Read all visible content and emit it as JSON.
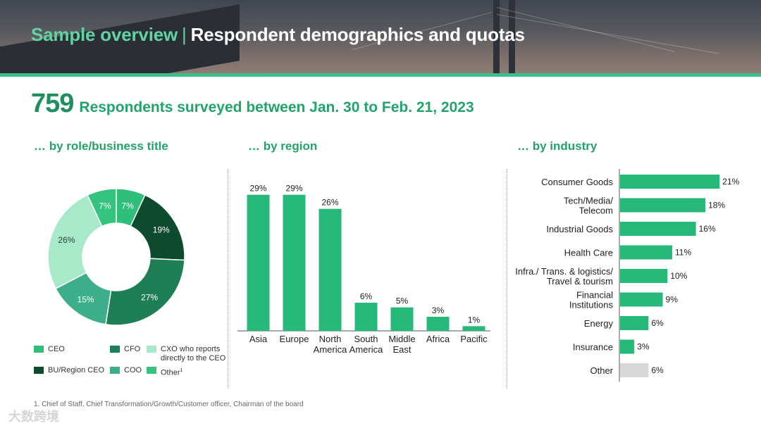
{
  "header": {
    "title_part1": "Sample overview",
    "separator": "|",
    "title_part2": "Respondent demographics and quotas"
  },
  "kpi": {
    "value": "759",
    "text": "Respondents surveyed between Jan. 30 to Feb. 21, 2023"
  },
  "sections": {
    "role": "… by role/business title",
    "region": "… by region",
    "industry": "… by industry"
  },
  "legend": {
    "ceo": "CEO",
    "cfo": "CFO",
    "cxo_line1": "CXO who reports",
    "cxo_line2": "directly to the CEO",
    "bu": "BU/Region CEO",
    "coo": "COO",
    "other": "Other",
    "other_sup": "1"
  },
  "footnote": "1. Chief of Staff, Chief Transformation/Growth/Customer officer, Chairman of the board",
  "watermark": "大数跨境",
  "colors": {
    "ceo": "#30bf7a",
    "bu_region_ceo": "#0e4a2e",
    "cfo": "#1e7f56",
    "coo": "#3dae8a",
    "cxo": "#a8e9c9",
    "other": "#34c47f",
    "bar": "#27b97a",
    "bar_other": "#d8d8d8",
    "accent": "#23a36c"
  },
  "chart_data": [
    {
      "type": "pie",
      "title": "… by role/business title",
      "labels": [
        "CEO",
        "BU/Region CEO",
        "CFO",
        "COO",
        "CXO who reports directly to the CEO",
        "Other"
      ],
      "values": [
        7,
        19,
        27,
        15,
        26,
        7
      ],
      "value_labels": [
        "7%",
        "19%",
        "27%",
        "15%",
        "26%",
        "7%"
      ]
    },
    {
      "type": "bar",
      "title": "… by region",
      "categories": [
        "Asia",
        "Europe",
        "North America",
        "South America",
        "Middle East",
        "Africa",
        "Pacific"
      ],
      "category_lines": [
        [
          "Asia"
        ],
        [
          "Europe"
        ],
        [
          "North",
          "America"
        ],
        [
          "South",
          "America"
        ],
        [
          "Middle",
          "East"
        ],
        [
          "Africa"
        ],
        [
          "Pacific"
        ]
      ],
      "values": [
        29,
        29,
        26,
        6,
        5,
        3,
        1
      ],
      "value_labels": [
        "29%",
        "29%",
        "26%",
        "6%",
        "5%",
        "3%",
        "1%"
      ],
      "ylim": [
        0,
        30
      ]
    },
    {
      "type": "bar",
      "orientation": "horizontal",
      "title": "… by industry",
      "categories": [
        "Consumer Goods",
        "Tech/Media/ Telecom",
        "Industrial Goods",
        "Health Care",
        "Infra./ Trans. & logistics/ Travel & tourism",
        "Financial Institutions",
        "Energy",
        "Insurance",
        "Other"
      ],
      "category_lines": [
        [
          "Consumer Goods"
        ],
        [
          "Tech/Media/",
          "Telecom"
        ],
        [
          "Industrial Goods"
        ],
        [
          "Health Care"
        ],
        [
          "Infra./ Trans. & logistics/",
          "Travel & tourism"
        ],
        [
          "Financial",
          "Institutions"
        ],
        [
          "Energy"
        ],
        [
          "Insurance"
        ],
        [
          "Other"
        ]
      ],
      "values": [
        21,
        18,
        16,
        11,
        10,
        9,
        6,
        3,
        6
      ],
      "value_labels": [
        "21%",
        "18%",
        "16%",
        "11%",
        "10%",
        "9%",
        "6%",
        "3%",
        "6%"
      ],
      "xlim": [
        0,
        22
      ]
    }
  ]
}
